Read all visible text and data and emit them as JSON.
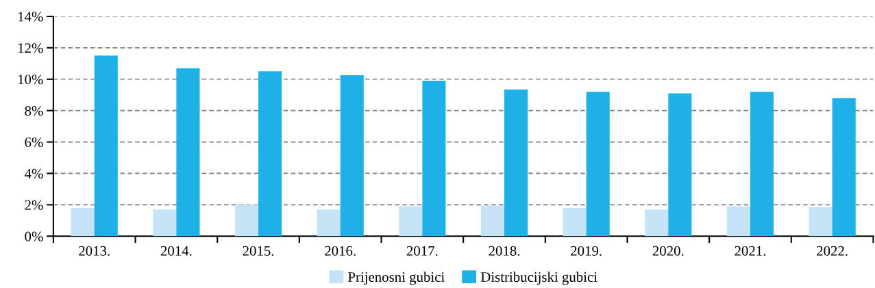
{
  "chart_data": {
    "type": "bar",
    "categories": [
      "2013.",
      "2014.",
      "2015.",
      "2016.",
      "2017.",
      "2018.",
      "2019.",
      "2020.",
      "2021.",
      "2022."
    ],
    "series": [
      {
        "name": "Prijenosni gubici",
        "color": "#c5e3f6",
        "values": [
          1.8,
          1.7,
          2.0,
          1.7,
          1.9,
          1.95,
          1.8,
          1.7,
          1.9,
          1.85
        ]
      },
      {
        "name": "Distribucijski gubici",
        "color": "#1eb0e6",
        "values": [
          11.5,
          10.7,
          10.5,
          10.25,
          9.9,
          9.35,
          9.2,
          9.1,
          9.2,
          8.8
        ]
      }
    ],
    "ylim": [
      0,
      14
    ],
    "yticks": [
      {
        "value": 0,
        "label": "0%"
      },
      {
        "value": 2,
        "label": "2%"
      },
      {
        "value": 4,
        "label": "4%"
      },
      {
        "value": 6,
        "label": "6%"
      },
      {
        "value": 8,
        "label": "8%"
      },
      {
        "value": 10,
        "label": "10%"
      },
      {
        "value": 12,
        "label": "12%"
      },
      {
        "value": 14,
        "label": "14%"
      }
    ],
    "grid": "y",
    "legend": "bottom"
  }
}
